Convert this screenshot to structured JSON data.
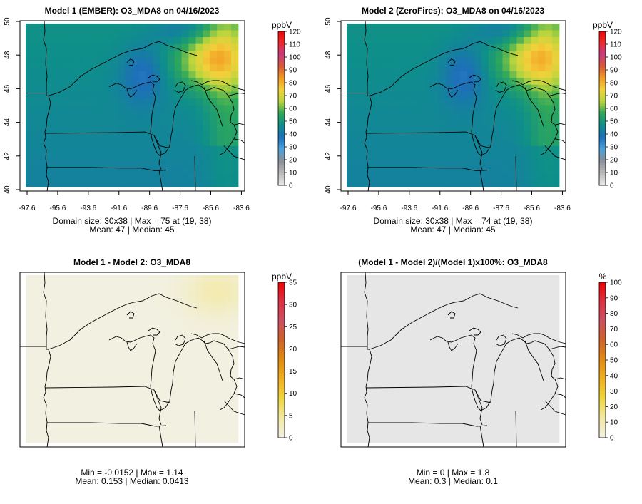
{
  "chart_data": [
    {
      "type": "heatmap",
      "title": "Model 1 (EMBER): O3_MDA8 on 04/16/2023",
      "unit": "ppbV",
      "colorbar_ticks": [
        0,
        10,
        20,
        30,
        40,
        50,
        60,
        70,
        80,
        90,
        100,
        110,
        120
      ],
      "color_range": [
        0,
        120
      ],
      "x_ticks": [
        "-97.6",
        "-95.6",
        "-93.6",
        "-91.6",
        "-89.6",
        "-87.6",
        "-85.6",
        "-83.6"
      ],
      "y_ticks": [
        "40",
        "42",
        "44",
        "46",
        "48",
        "50"
      ],
      "xlim": [
        -97.6,
        -83.6
      ],
      "ylim": [
        40,
        50
      ],
      "field": "ozone",
      "stats": [
        "Domain size: 30x38 | Max = 75 at (19, 38)",
        "Mean: 47 |  Median: 45"
      ]
    },
    {
      "type": "heatmap",
      "title": "Model 2 (ZeroFires): O3_MDA8 on 04/16/2023",
      "unit": "ppbV",
      "colorbar_ticks": [
        0,
        10,
        20,
        30,
        40,
        50,
        60,
        70,
        80,
        90,
        100,
        110,
        120
      ],
      "color_range": [
        0,
        120
      ],
      "x_ticks": [
        "-97.6",
        "-95.6",
        "-93.6",
        "-91.6",
        "-89.6",
        "-87.6",
        "-85.6",
        "-83.6"
      ],
      "y_ticks": [
        "40",
        "42",
        "44",
        "46",
        "48",
        "50"
      ],
      "xlim": [
        -97.6,
        -83.6
      ],
      "ylim": [
        40,
        50
      ],
      "field": "ozone",
      "stats": [
        "Domain size: 30x38 | Max = 74 at (19, 38)",
        "Mean: 47 |  Median: 45"
      ]
    },
    {
      "type": "heatmap",
      "title": "Model 1 - Model 2: O3_MDA8",
      "unit": "ppbV",
      "colorbar_ticks": [
        0,
        5,
        10,
        15,
        20,
        25,
        30,
        35
      ],
      "color_range": [
        0,
        35
      ],
      "field": "diff",
      "stats": [
        "Min = -0.0152 | Max = 1.14",
        "Mean: 0.153 |  Median: 0.0413"
      ]
    },
    {
      "type": "heatmap",
      "title": "(Model 1 - Model 2)/(Model 1)x100%: O3_MDA8",
      "unit": "%",
      "colorbar_ticks": [
        0,
        10,
        20,
        30,
        40,
        50,
        60,
        70,
        80,
        90,
        100
      ],
      "color_range": [
        0,
        100
      ],
      "field": "pct",
      "stats": [
        "Min = 0 | Max = 1.8",
        "Mean: 0.3 |  Median: 0.1"
      ]
    }
  ],
  "palettes": {
    "ppb": [
      "#e5e5e5",
      "#b7b7b7",
      "#8a8f98",
      "#4aa3df",
      "#1d6fb8",
      "#0e8f8a",
      "#2fa85a",
      "#b9d53d",
      "#f2d13b",
      "#f29a22",
      "#d9583a",
      "#c93a80",
      "#ee2a2a",
      "#f00000"
    ],
    "diff": [
      "#f2f0e0",
      "#f3e9a0",
      "#f0d53a",
      "#f0b020",
      "#e08a10",
      "#d0622a",
      "#cc5060",
      "#dd3040",
      "#f00000"
    ],
    "missing": "#e6e6e6"
  }
}
